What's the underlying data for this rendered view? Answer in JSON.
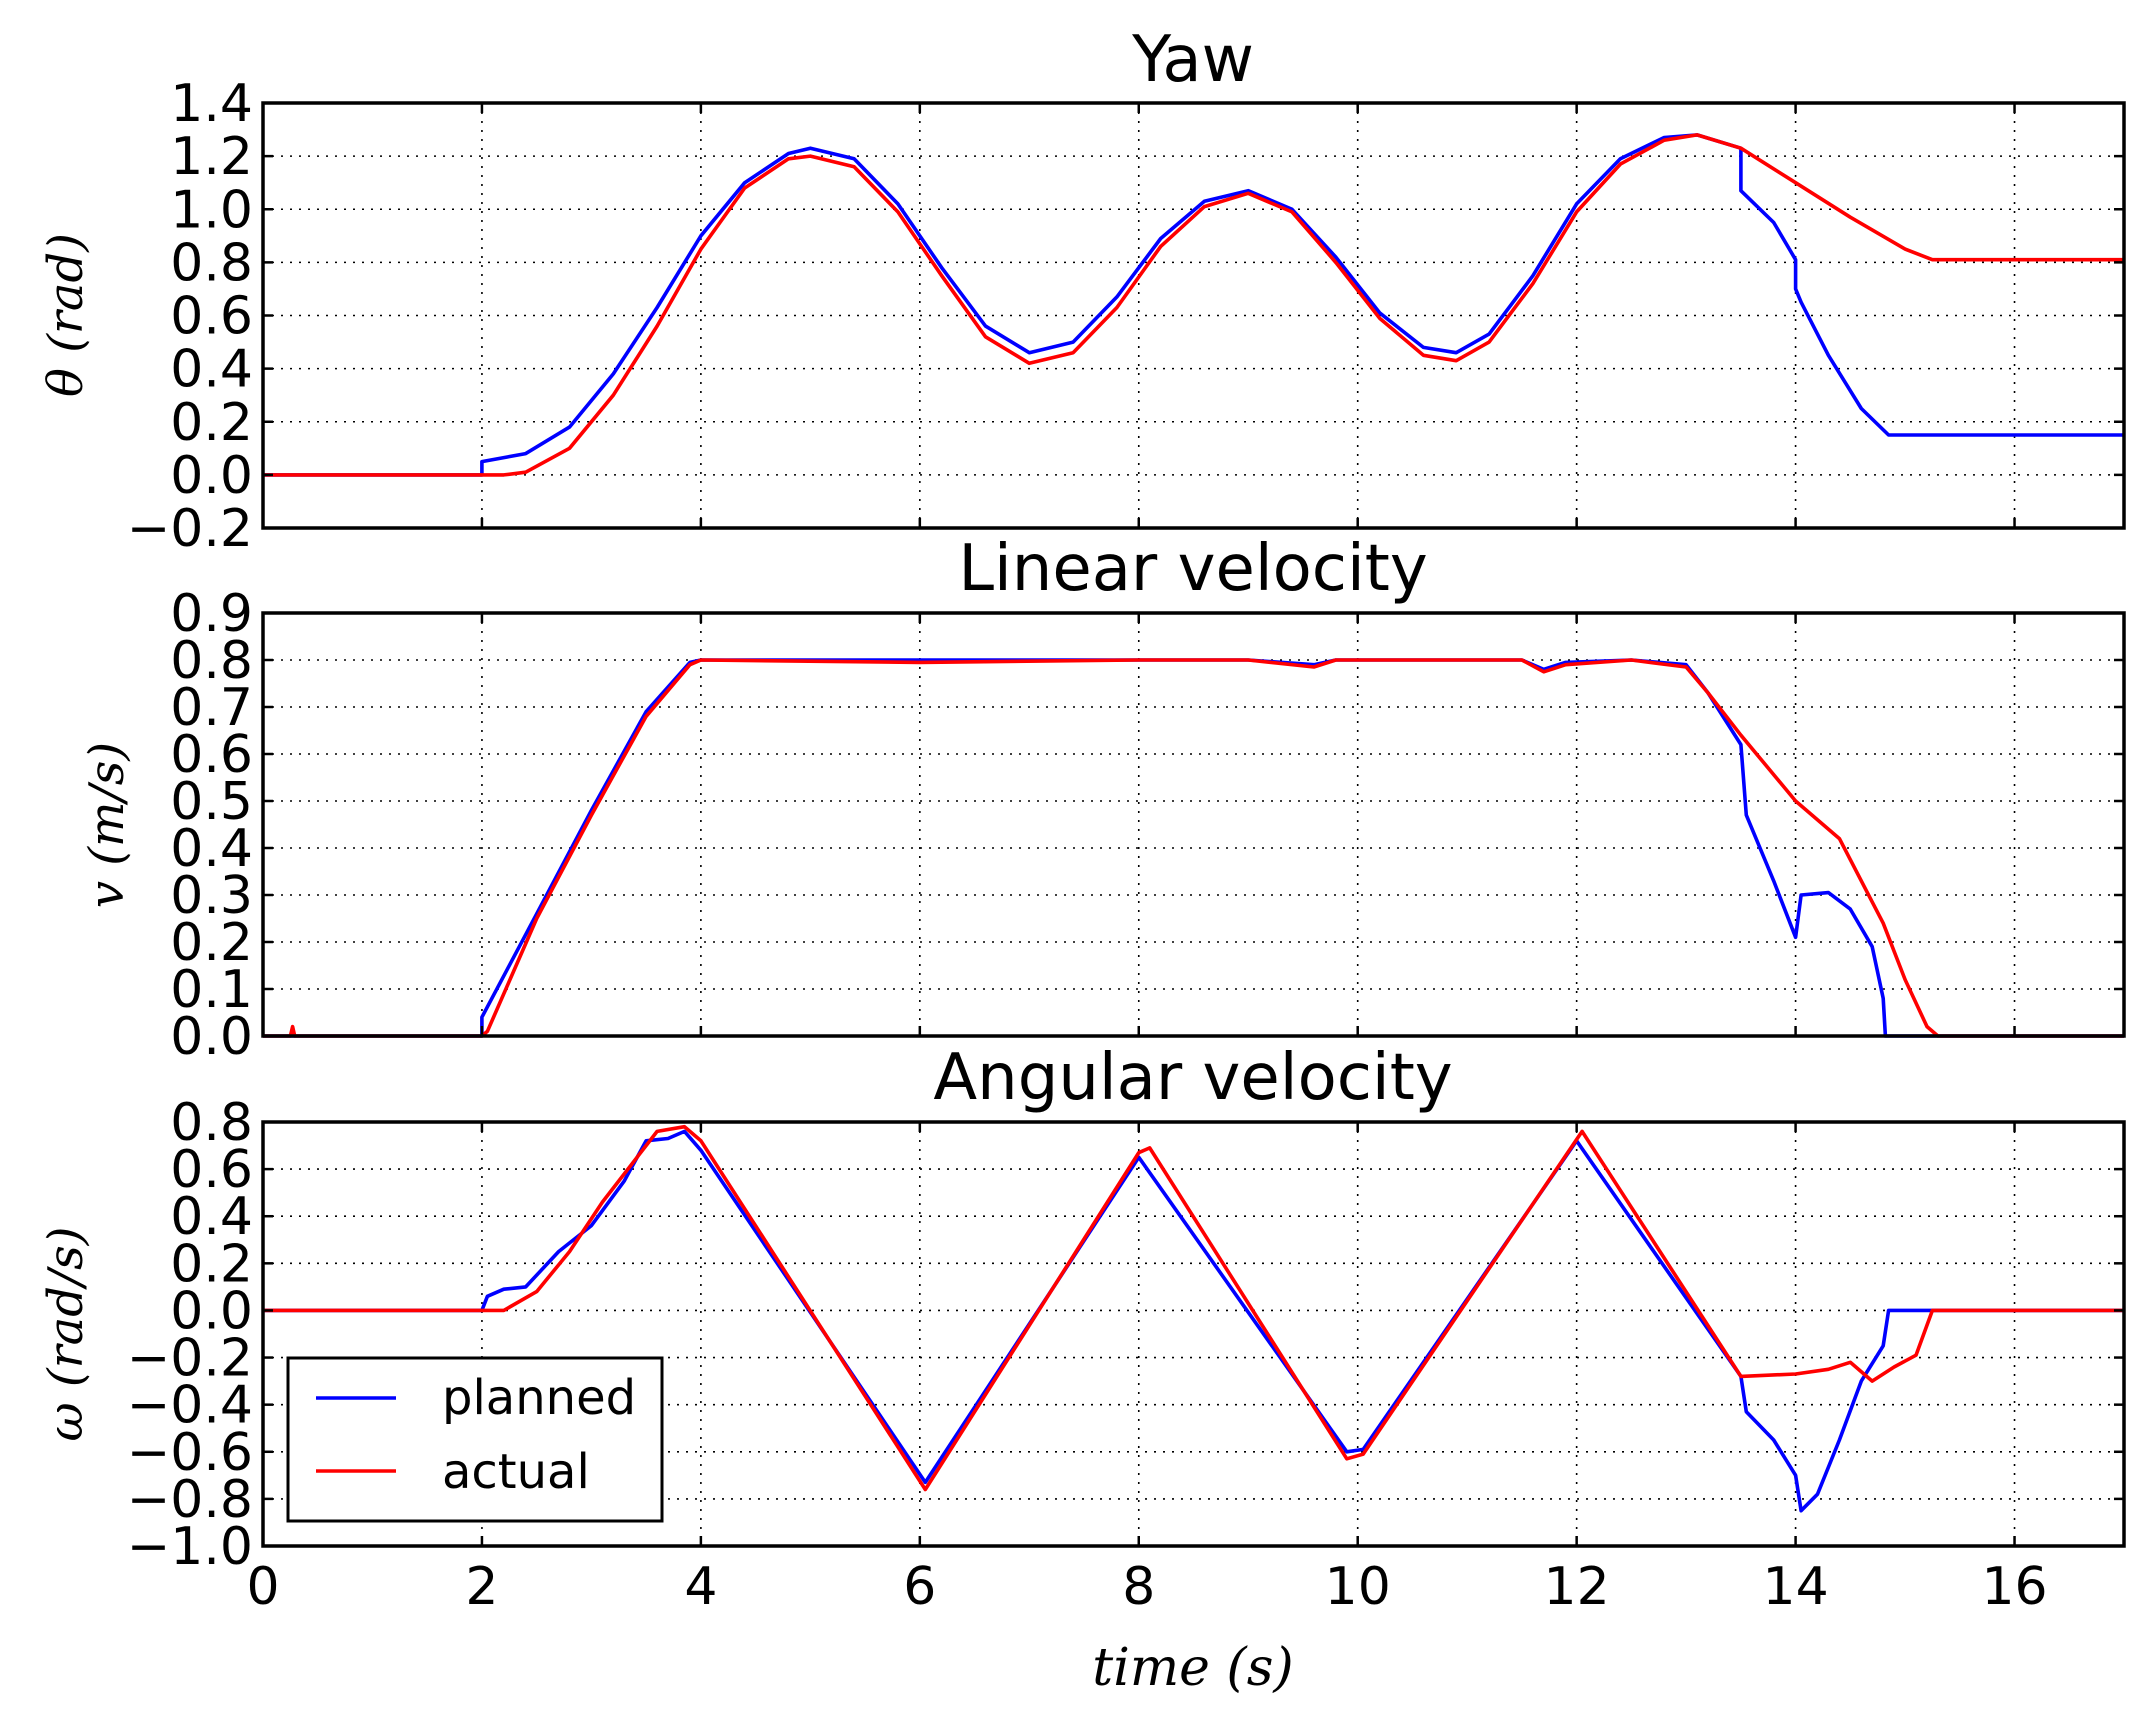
{
  "legend": {
    "entries": [
      "planned",
      "actual"
    ]
  },
  "colors": {
    "planned": "#0000ff",
    "actual": "#ff0000"
  },
  "chart_data": [
    {
      "type": "line",
      "title": "Yaw",
      "ylabel": "θ (rad)",
      "xlabel": "",
      "xlim": [
        0,
        17
      ],
      "ylim": [
        -0.2,
        1.4
      ],
      "xticks": [
        0,
        2,
        4,
        6,
        8,
        10,
        12,
        14,
        16
      ],
      "yticks": [
        -0.2,
        0.0,
        0.2,
        0.4,
        0.6,
        0.8,
        1.0,
        1.2,
        1.4
      ],
      "ytick_labels": [
        "−0.2",
        "0.0",
        "0.2",
        "0.4",
        "0.6",
        "0.8",
        "1.0",
        "1.2",
        "1.4"
      ],
      "show_xtick_labels": false,
      "grid": true,
      "series": [
        {
          "name": "planned",
          "color": "#0000ff",
          "x": [
            0,
            2.0,
            2.0,
            2.4,
            2.8,
            3.2,
            3.6,
            4.0,
            4.4,
            4.8,
            5.0,
            5.4,
            5.8,
            6.2,
            6.6,
            7.0,
            7.4,
            7.8,
            8.2,
            8.6,
            9.0,
            9.4,
            9.8,
            10.2,
            10.6,
            10.9,
            11.2,
            11.6,
            12.0,
            12.4,
            12.8,
            13.1,
            13.5,
            13.5,
            13.8,
            14.0,
            14.0,
            14.05,
            14.3,
            14.6,
            14.85,
            17
          ],
          "y": [
            0,
            0,
            0.05,
            0.08,
            0.18,
            0.38,
            0.63,
            0.9,
            1.1,
            1.21,
            1.23,
            1.19,
            1.02,
            0.78,
            0.56,
            0.46,
            0.5,
            0.67,
            0.89,
            1.03,
            1.07,
            1.0,
            0.82,
            0.61,
            0.48,
            0.46,
            0.53,
            0.75,
            1.02,
            1.19,
            1.27,
            1.28,
            1.23,
            1.07,
            0.95,
            0.81,
            0.7,
            0.65,
            0.45,
            0.25,
            0.15,
            0.15
          ]
        },
        {
          "name": "actual",
          "color": "#ff0000",
          "x": [
            0,
            2.0,
            2.2,
            2.4,
            2.8,
            3.2,
            3.6,
            4.0,
            4.4,
            4.8,
            5.0,
            5.4,
            5.8,
            6.2,
            6.6,
            7.0,
            7.4,
            7.8,
            8.2,
            8.6,
            9.0,
            9.4,
            9.8,
            10.2,
            10.6,
            10.9,
            11.2,
            11.6,
            12.0,
            12.4,
            12.8,
            13.1,
            13.5,
            14.0,
            14.5,
            15.0,
            15.25,
            17
          ],
          "y": [
            0,
            0,
            0.0,
            0.01,
            0.1,
            0.3,
            0.56,
            0.85,
            1.08,
            1.19,
            1.2,
            1.16,
            0.99,
            0.75,
            0.52,
            0.42,
            0.46,
            0.63,
            0.86,
            1.01,
            1.06,
            0.99,
            0.8,
            0.59,
            0.45,
            0.43,
            0.5,
            0.72,
            0.99,
            1.17,
            1.26,
            1.28,
            1.23,
            1.1,
            0.97,
            0.85,
            0.81,
            0.81
          ]
        }
      ]
    },
    {
      "type": "line",
      "title": "Linear velocity",
      "ylabel": "v (m/s)",
      "xlabel": "",
      "xlim": [
        0,
        17
      ],
      "ylim": [
        0.0,
        0.9
      ],
      "xticks": [
        0,
        2,
        4,
        6,
        8,
        10,
        12,
        14,
        16
      ],
      "yticks": [
        0.0,
        0.1,
        0.2,
        0.3,
        0.4,
        0.5,
        0.6,
        0.7,
        0.8,
        0.9
      ],
      "ytick_labels": [
        "0.0",
        "0.1",
        "0.2",
        "0.3",
        "0.4",
        "0.5",
        "0.6",
        "0.7",
        "0.8",
        "0.9"
      ],
      "show_xtick_labels": false,
      "grid": true,
      "series": [
        {
          "name": "planned",
          "color": "#0000ff",
          "x": [
            0,
            2.0,
            2.0,
            2.5,
            3.0,
            3.5,
            3.9,
            4.0,
            6.0,
            8.0,
            9.0,
            9.6,
            9.8,
            11.5,
            11.7,
            11.9,
            12.5,
            13.0,
            13.2,
            13.5,
            13.55,
            13.8,
            14.0,
            14.05,
            14.3,
            14.5,
            14.7,
            14.8,
            14.82,
            17
          ],
          "y": [
            0,
            0,
            0.04,
            0.26,
            0.48,
            0.69,
            0.795,
            0.8,
            0.8,
            0.8,
            0.8,
            0.79,
            0.8,
            0.8,
            0.78,
            0.795,
            0.8,
            0.79,
            0.73,
            0.62,
            0.47,
            0.33,
            0.21,
            0.3,
            0.305,
            0.27,
            0.19,
            0.08,
            0.0,
            0.0
          ]
        },
        {
          "name": "actual",
          "color": "#ff0000",
          "x": [
            0,
            0.25,
            0.27,
            0.29,
            2.0,
            2.05,
            2.5,
            3.0,
            3.5,
            3.9,
            4.0,
            6.0,
            8.0,
            9.0,
            9.6,
            9.8,
            11.5,
            11.7,
            11.9,
            12.5,
            13.0,
            13.2,
            13.5,
            14.0,
            14.4,
            14.8,
            15.0,
            15.2,
            15.3,
            17
          ],
          "y": [
            0,
            0,
            0.02,
            0,
            0,
            0.01,
            0.25,
            0.47,
            0.68,
            0.79,
            0.8,
            0.795,
            0.8,
            0.8,
            0.785,
            0.8,
            0.8,
            0.775,
            0.79,
            0.8,
            0.785,
            0.73,
            0.64,
            0.5,
            0.42,
            0.24,
            0.12,
            0.02,
            0.0,
            0.0
          ]
        }
      ]
    },
    {
      "type": "line",
      "title": "Angular velocity",
      "ylabel": "ω (rad/s)",
      "xlabel": "time (s)",
      "xlim": [
        0,
        17
      ],
      "ylim": [
        -1.0,
        0.8
      ],
      "xticks": [
        0,
        2,
        4,
        6,
        8,
        10,
        12,
        14,
        16
      ],
      "xtick_labels": [
        "0",
        "2",
        "4",
        "6",
        "8",
        "10",
        "12",
        "14",
        "16"
      ],
      "yticks": [
        -1.0,
        -0.8,
        -0.6,
        -0.4,
        -0.2,
        0.0,
        0.2,
        0.4,
        0.6,
        0.8
      ],
      "ytick_labels": [
        "−1.0",
        "−0.8",
        "−0.6",
        "−0.4",
        "−0.2",
        "0.0",
        "0.2",
        "0.4",
        "0.6",
        "0.8"
      ],
      "show_xtick_labels": true,
      "grid": true,
      "legend_position": "lower-left",
      "series": [
        {
          "name": "planned",
          "color": "#0000ff",
          "x": [
            0,
            2.0,
            2.05,
            2.2,
            2.4,
            2.7,
            3.0,
            3.3,
            3.5,
            3.7,
            3.85,
            4.0,
            6.05,
            8.0,
            9.9,
            10.05,
            12.0,
            13.5,
            13.55,
            13.8,
            14.0,
            14.05,
            14.2,
            14.4,
            14.6,
            14.8,
            14.85,
            17
          ],
          "y": [
            0,
            0,
            0.06,
            0.09,
            0.1,
            0.25,
            0.36,
            0.55,
            0.72,
            0.73,
            0.76,
            0.68,
            -0.73,
            0.65,
            -0.6,
            -0.59,
            0.72,
            -0.28,
            -0.43,
            -0.55,
            -0.7,
            -0.85,
            -0.78,
            -0.55,
            -0.3,
            -0.15,
            0.0,
            0.0
          ]
        },
        {
          "name": "actual",
          "color": "#ff0000",
          "x": [
            0,
            2.1,
            2.2,
            2.5,
            2.8,
            3.1,
            3.4,
            3.6,
            3.85,
            4.0,
            6.05,
            8.0,
            8.1,
            9.9,
            10.05,
            12.05,
            13.5,
            14.0,
            14.3,
            14.5,
            14.7,
            14.9,
            15.1,
            15.25,
            17
          ],
          "y": [
            0,
            0,
            0.0,
            0.08,
            0.25,
            0.46,
            0.64,
            0.76,
            0.78,
            0.72,
            -0.76,
            0.67,
            0.69,
            -0.63,
            -0.61,
            0.76,
            -0.28,
            -0.27,
            -0.25,
            -0.22,
            -0.3,
            -0.24,
            -0.19,
            0.0,
            0.0
          ]
        }
      ]
    }
  ]
}
